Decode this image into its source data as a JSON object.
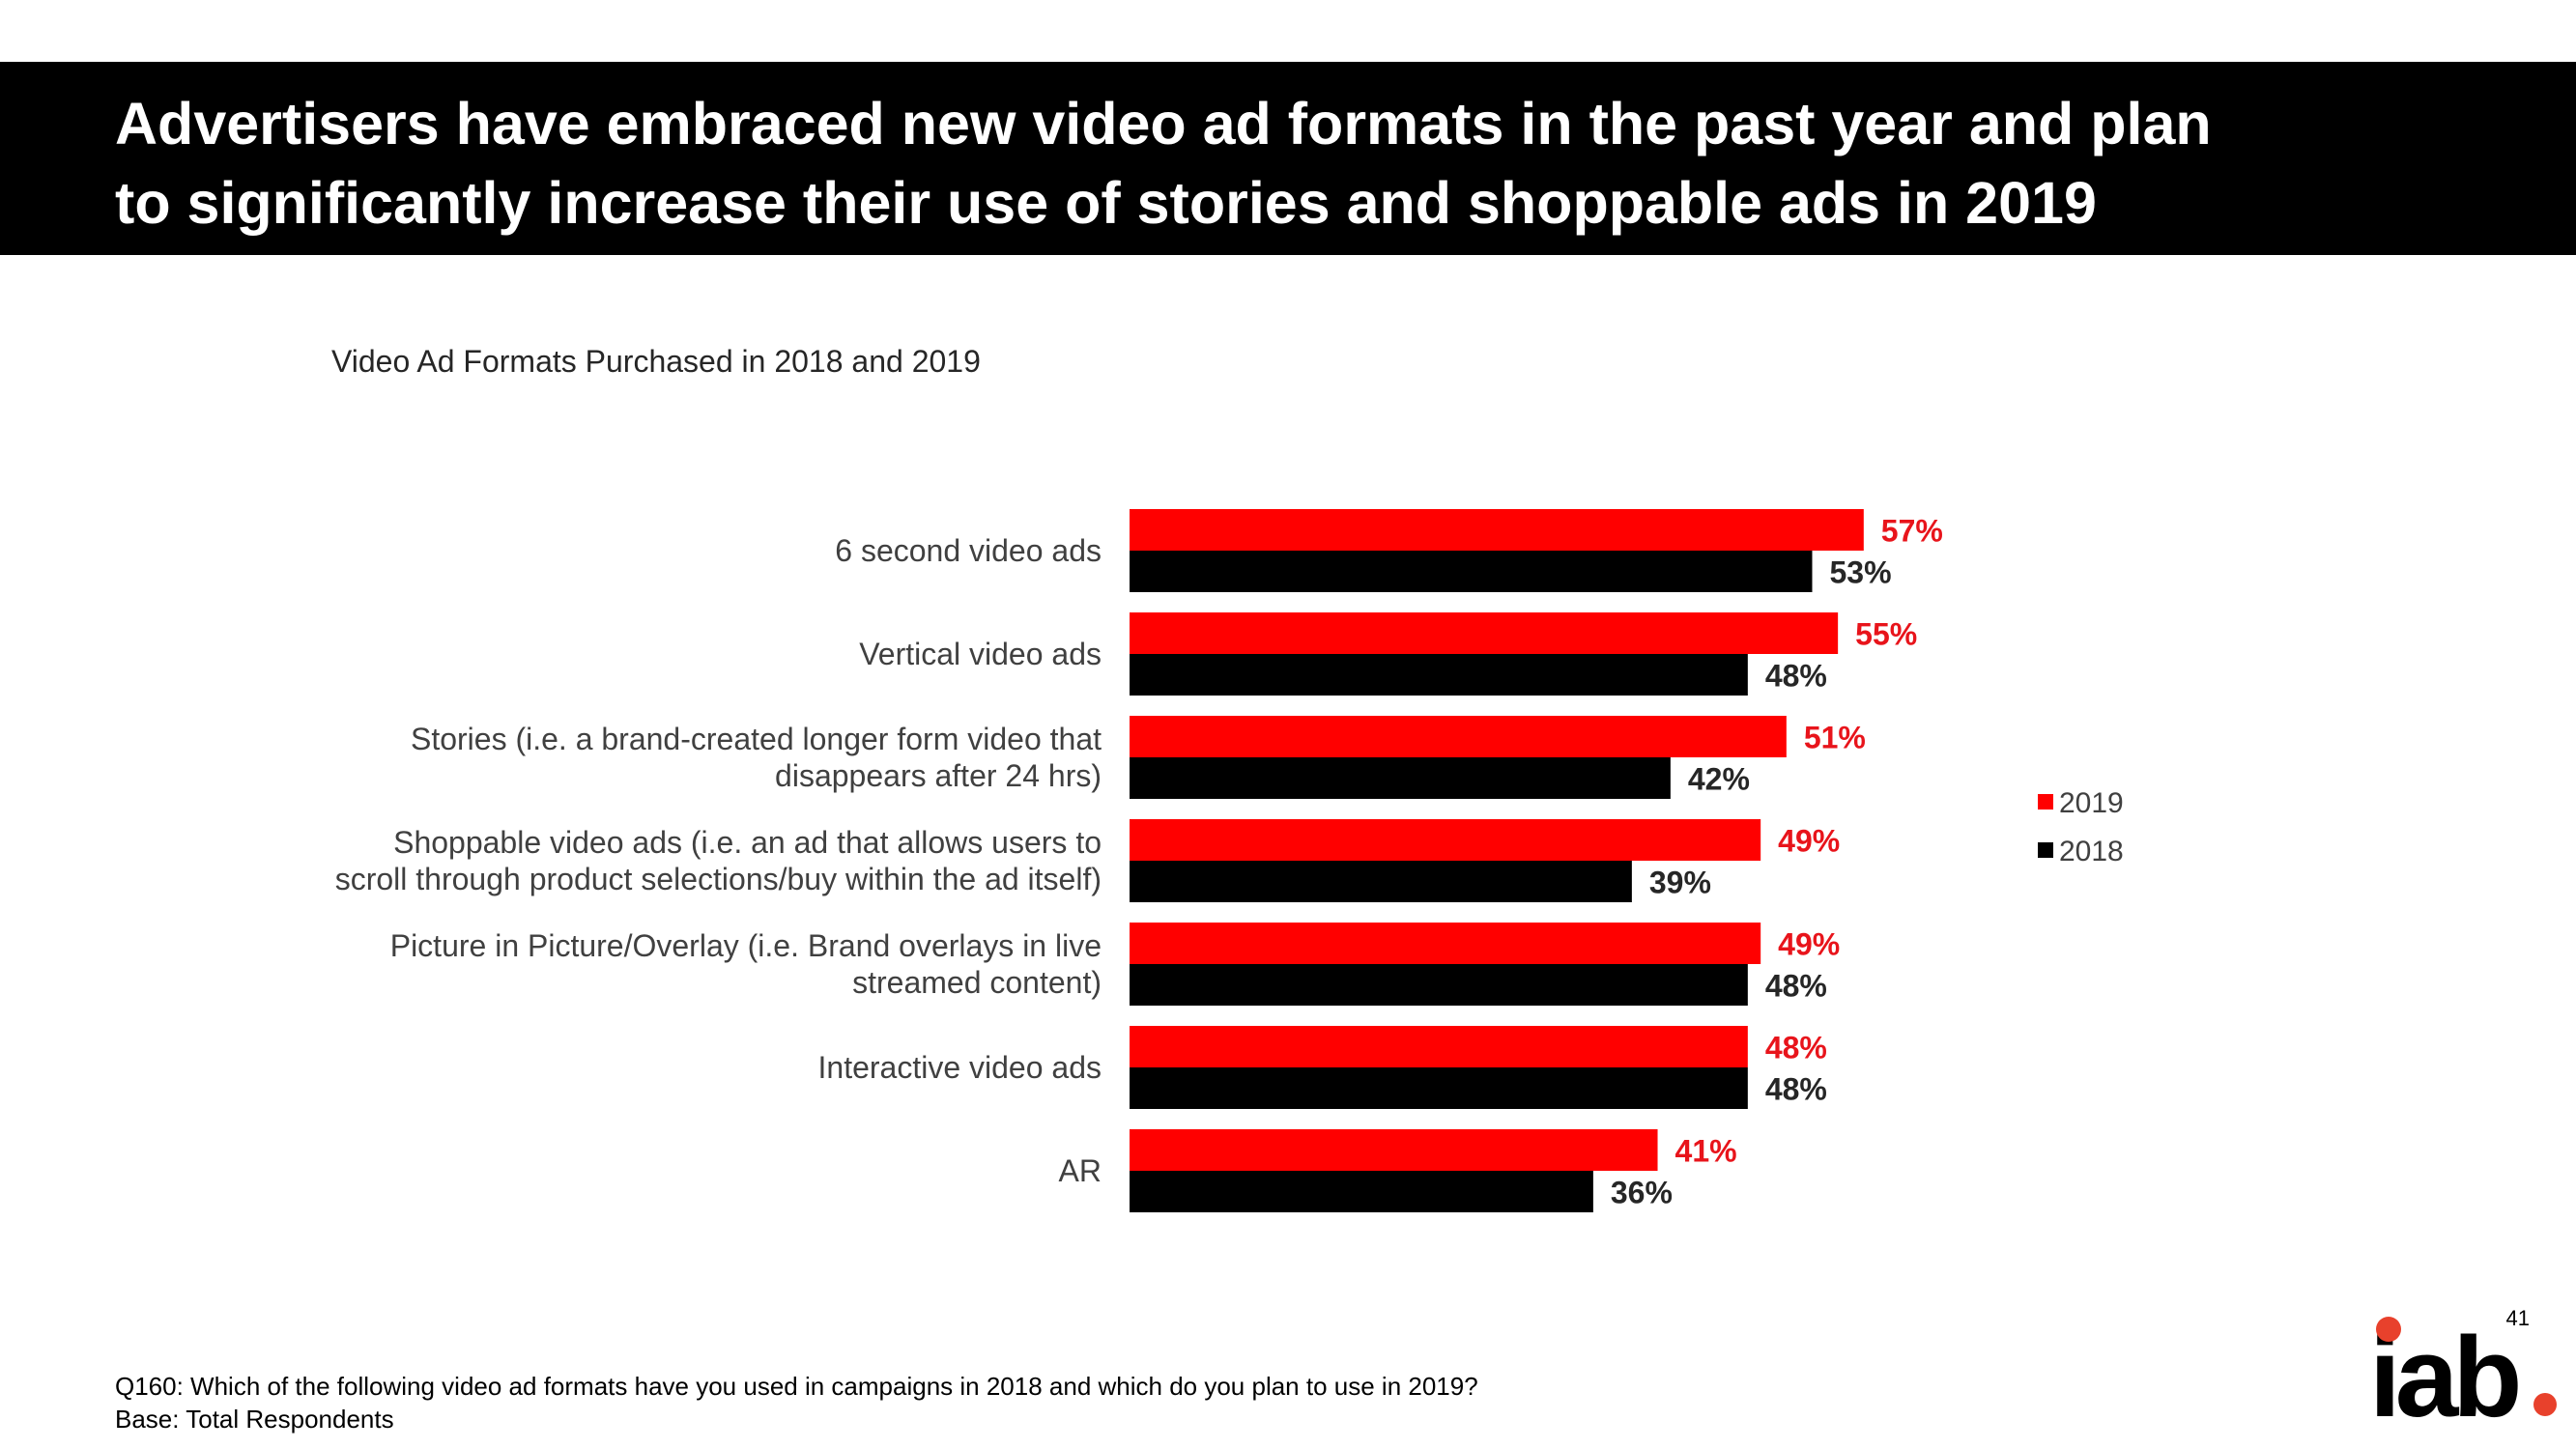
{
  "header": {
    "title_line1": "Advertisers have embraced new video ad formats in the past year and plan",
    "title_line2": "to significantly increase their use of stories and shoppable ads in 2019"
  },
  "chart_data": {
    "type": "bar",
    "orientation": "horizontal",
    "title": "Video Ad Formats Purchased in 2018 and 2019",
    "categories": [
      [
        "6 second video ads"
      ],
      [
        "Vertical video ads"
      ],
      [
        "Stories (i.e. a brand-created longer form video that",
        "disappears after 24 hrs)"
      ],
      [
        "Shoppable video ads (i.e. an ad that allows users to",
        "scroll through product selections/buy within the ad itself)"
      ],
      [
        "Picture in Picture/Overlay (i.e. Brand overlays in live",
        "streamed content)"
      ],
      [
        "Interactive video ads"
      ],
      [
        "AR"
      ]
    ],
    "series": [
      {
        "name": "2019",
        "color": "#ff0000",
        "label_color": "#e8141b",
        "values": [
          57,
          55,
          51,
          49,
          49,
          48,
          41
        ],
        "labels": [
          "57%",
          "55%",
          "51%",
          "49%",
          "49%",
          "48%",
          "41%"
        ]
      },
      {
        "name": "2018",
        "color": "#000000",
        "label_color": "#262626",
        "values": [
          53,
          48,
          42,
          39,
          48,
          48,
          36
        ],
        "labels": [
          "53%",
          "48%",
          "42%",
          "39%",
          "48%",
          "48%",
          "36%"
        ]
      }
    ],
    "xlim": [
      0,
      100
    ],
    "grid": false,
    "legend_position": "right"
  },
  "legend": {
    "items": [
      {
        "name": "2019",
        "color": "#ff0000"
      },
      {
        "name": "2018",
        "color": "#000000"
      }
    ]
  },
  "footer": {
    "question": "Q160: Which of the following video ad formats have you used in campaigns in 2018 and which do you plan to use in 2019?",
    "base": "Base: Total Respondents",
    "page_number": "41",
    "logo_text": "iab",
    "logo_dot_color": "#e8412c"
  }
}
